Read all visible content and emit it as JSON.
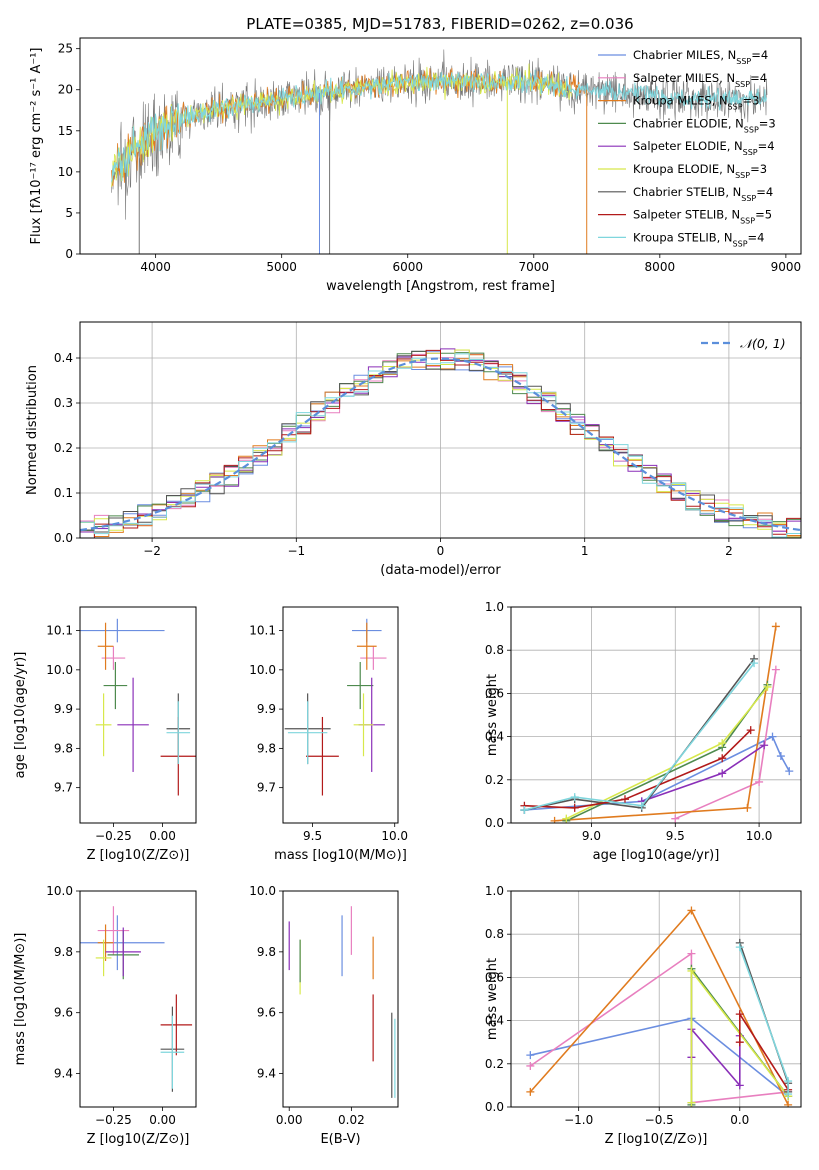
{
  "title": "PLATE=0385, MJD=51783, FIBERID=0262, z=0.036",
  "colors": {
    "Chabrier MILES": "#6b8ee0",
    "Salpeter MILES": "#e87fbf",
    "Kroupa MILES": "#e07b1f",
    "Chabrier ELODIE": "#4e8a4e",
    "Salpeter ELODIE": "#8a2fb8",
    "Kroupa ELODIE": "#d7e84b",
    "Chabrier STELIB": "#555555",
    "Salpeter STELIB": "#b21a1a",
    "Kroupa STELIB": "#7fd6dd"
  },
  "chart_data": [
    {
      "id": "spectrum",
      "type": "line",
      "title": "PLATE=0385, MJD=51783, FIBERID=0262, z=0.036",
      "xlabel": "wavelength [Angstrom, rest frame]",
      "ylabel": "Flux [fλ10⁻¹⁷ erg cm⁻² s⁻¹ A⁻¹]",
      "xlim": [
        3400,
        9120
      ],
      "ylim": [
        0,
        26.3
      ],
      "xticks": [
        4000,
        5000,
        6000,
        7000,
        8000,
        9000
      ],
      "yticks": [
        0,
        5,
        10,
        15,
        20,
        25
      ],
      "grid": false,
      "legend": "top-right",
      "legend_entries": [
        "Chabrier MILES, N_SSP=4",
        "Salpeter MILES, N_SSP=4",
        "Kroupa MILES, N_SSP=3",
        "Chabrier ELODIE, N_SSP=3",
        "Salpeter ELODIE, N_SSP=4",
        "Kroupa ELODIE, N_SSP=3",
        "Chabrier STELIB, N_SSP=4",
        "Salpeter STELIB, N_SSP=5",
        "Kroupa STELIB, N_SSP=4"
      ],
      "continuum": {
        "x": [
          3650,
          3800,
          4000,
          4300,
          4600,
          5000,
          5500,
          6000,
          6500,
          7000,
          7400,
          7600,
          8000,
          8500,
          8850
        ],
        "y": [
          10,
          12,
          15,
          17,
          18,
          19,
          20,
          21,
          21,
          21,
          20,
          20,
          19,
          19,
          19
        ]
      },
      "series_ranges": [
        {
          "name": "data",
          "x": [
            3650,
            8850
          ]
        },
        {
          "name": "Chabrier STELIB",
          "x": [
            3650,
            7400
          ]
        },
        {
          "name": "Kroupa STELIB",
          "x": [
            3650,
            8850
          ]
        }
      ]
    },
    {
      "id": "residuals",
      "type": "line",
      "xlabel": "(data-model)/error",
      "ylabel": "Normed distribution",
      "xlim": [
        -2.5,
        2.5
      ],
      "ylim": [
        0,
        0.48
      ],
      "xticks": [
        -2,
        -1,
        0,
        1,
        2
      ],
      "yticks": [
        0.0,
        0.1,
        0.2,
        0.3,
        0.4
      ],
      "grid": true,
      "legend": "top-right",
      "legend_entries": [
        "N(0,1)"
      ],
      "gaussian": {
        "mean": 0,
        "sigma": 1
      }
    },
    {
      "id": "age-vs-Z",
      "type": "scatter",
      "xlabel": "Z [log10(Z/Z⊙)]",
      "ylabel": "age  [log10(age/yr)]",
      "xlim": [
        -0.42,
        0.17
      ],
      "ylim": [
        9.61,
        10.16
      ],
      "xticks": [
        -0.25,
        0.0
      ],
      "yticks": [
        9.7,
        9.8,
        9.9,
        10.0,
        10.1
      ],
      "points": [
        {
          "name": "Chabrier MILES",
          "x": -0.23,
          "y": 10.1,
          "xerr": 0.24,
          "yerr": 0.03
        },
        {
          "name": "Salpeter MILES",
          "x": -0.25,
          "y": 10.03,
          "xerr": 0.06,
          "yerr": 0.03
        },
        {
          "name": "Kroupa MILES",
          "x": -0.29,
          "y": 10.06,
          "xerr": 0.04,
          "yerr": 0.06
        },
        {
          "name": "Chabrier ELODIE",
          "x": -0.24,
          "y": 9.96,
          "xerr": 0.06,
          "yerr": 0.06
        },
        {
          "name": "Salpeter ELODIE",
          "x": -0.15,
          "y": 9.86,
          "xerr": 0.08,
          "yerr": 0.12
        },
        {
          "name": "Kroupa ELODIE",
          "x": -0.3,
          "y": 9.86,
          "xerr": 0.04,
          "yerr": 0.08
        },
        {
          "name": "Chabrier STELIB",
          "x": 0.08,
          "y": 9.85,
          "xerr": 0.06,
          "yerr": 0.09
        },
        {
          "name": "Salpeter STELIB",
          "x": 0.08,
          "y": 9.78,
          "xerr": 0.09,
          "yerr": 0.1
        },
        {
          "name": "Kroupa STELIB",
          "x": 0.08,
          "y": 9.84,
          "xerr": 0.06,
          "yerr": 0.08
        }
      ]
    },
    {
      "id": "age-vs-mass",
      "type": "scatter",
      "xlabel": "mass [log10(M/M⊙)]",
      "ylabel": "",
      "xlim": [
        9.32,
        10.02
      ],
      "ylim": [
        9.61,
        10.16
      ],
      "xticks": [
        9.5,
        10.0
      ],
      "yticks": [
        9.7,
        9.8,
        9.9,
        10.0,
        10.1
      ],
      "points": [
        {
          "name": "Chabrier MILES",
          "x": 9.83,
          "y": 10.1,
          "xerr": 0.09,
          "yerr": 0.03
        },
        {
          "name": "Salpeter MILES",
          "x": 9.87,
          "y": 10.03,
          "xerr": 0.08,
          "yerr": 0.03
        },
        {
          "name": "Kroupa MILES",
          "x": 9.83,
          "y": 10.06,
          "xerr": 0.06,
          "yerr": 0.06
        },
        {
          "name": "Chabrier ELODIE",
          "x": 9.79,
          "y": 9.96,
          "xerr": 0.08,
          "yerr": 0.06
        },
        {
          "name": "Salpeter ELODIE",
          "x": 9.86,
          "y": 9.86,
          "xerr": 0.08,
          "yerr": 0.12
        },
        {
          "name": "Kroupa ELODIE",
          "x": 9.81,
          "y": 9.86,
          "xerr": 0.06,
          "yerr": 0.08
        },
        {
          "name": "Chabrier STELIB",
          "x": 9.47,
          "y": 9.85,
          "xerr": 0.14,
          "yerr": 0.09
        },
        {
          "name": "Salpeter STELIB",
          "x": 9.56,
          "y": 9.78,
          "xerr": 0.1,
          "yerr": 0.1
        },
        {
          "name": "Kroupa STELIB",
          "x": 9.47,
          "y": 9.84,
          "xerr": 0.12,
          "yerr": 0.08
        }
      ]
    },
    {
      "id": "weight-vs-age",
      "type": "line",
      "xlabel": "age  [log10(age/yr)]",
      "ylabel": "mass weight",
      "xlim": [
        8.52,
        10.25
      ],
      "ylim": [
        0,
        1.0
      ],
      "xticks": [
        9.0,
        9.5,
        10.0
      ],
      "yticks": [
        0.0,
        0.2,
        0.4,
        0.6,
        0.8,
        1.0
      ],
      "grid": true,
      "series": [
        {
          "name": "Chabrier MILES",
          "x": [
            8.6,
            9.3,
            10.08,
            10.13,
            10.18
          ],
          "y": [
            0.06,
            0.1,
            0.4,
            0.31,
            0.24
          ]
        },
        {
          "name": "Salpeter MILES",
          "x": [
            9.5,
            10.0,
            10.1
          ],
          "y": [
            0.02,
            0.19,
            0.71
          ]
        },
        {
          "name": "Kroupa MILES",
          "x": [
            8.78,
            9.93,
            10.1
          ],
          "y": [
            0.01,
            0.07,
            0.91
          ]
        },
        {
          "name": "Chabrier ELODIE",
          "x": [
            8.85,
            9.78,
            10.05
          ],
          "y": [
            0.01,
            0.35,
            0.64
          ]
        },
        {
          "name": "Salpeter ELODIE",
          "x": [
            9.3,
            9.78,
            10.03
          ],
          "y": [
            0.1,
            0.23,
            0.36
          ]
        },
        {
          "name": "Kroupa ELODIE",
          "x": [
            8.85,
            9.78,
            10.05
          ],
          "y": [
            0.02,
            0.37,
            0.63
          ]
        },
        {
          "name": "Chabrier STELIB",
          "x": [
            8.6,
            8.9,
            9.3,
            9.97
          ],
          "y": [
            0.06,
            0.11,
            0.07,
            0.76
          ]
        },
        {
          "name": "Salpeter STELIB",
          "x": [
            8.6,
            8.9,
            9.2,
            9.78,
            9.95
          ],
          "y": [
            0.08,
            0.07,
            0.11,
            0.3,
            0.43
          ]
        },
        {
          "name": "Kroupa STELIB",
          "x": [
            8.6,
            8.9,
            9.3,
            9.97
          ],
          "y": [
            0.06,
            0.12,
            0.08,
            0.74
          ]
        }
      ]
    },
    {
      "id": "mass-vs-Z",
      "type": "scatter",
      "xlabel": "Z [log10(Z/Z⊙)]",
      "ylabel": "mass [log10(M/M⊙)]",
      "xlim": [
        -0.42,
        0.17
      ],
      "ylim": [
        9.29,
        10.0
      ],
      "xticks": [
        -0.25,
        0.0
      ],
      "yticks": [
        9.4,
        9.6,
        9.8,
        10.0
      ],
      "points": [
        {
          "name": "Chabrier MILES",
          "x": -0.23,
          "y": 9.83,
          "xerr": 0.24,
          "yerr": 0.09
        },
        {
          "name": "Salpeter MILES",
          "x": -0.25,
          "y": 9.87,
          "xerr": 0.08,
          "yerr": 0.08
        },
        {
          "name": "Kroupa MILES",
          "x": -0.29,
          "y": 9.83,
          "xerr": 0.04,
          "yerr": 0.06
        },
        {
          "name": "Chabrier ELODIE",
          "x": -0.2,
          "y": 9.79,
          "xerr": 0.08,
          "yerr": 0.08
        },
        {
          "name": "Salpeter ELODIE",
          "x": -0.2,
          "y": 9.8,
          "xerr": 0.09,
          "yerr": 0.08
        },
        {
          "name": "Kroupa ELODIE",
          "x": -0.3,
          "y": 9.78,
          "xerr": 0.04,
          "yerr": 0.06
        },
        {
          "name": "Chabrier STELIB",
          "x": 0.05,
          "y": 9.48,
          "xerr": 0.06,
          "yerr": 0.14
        },
        {
          "name": "Salpeter STELIB",
          "x": 0.07,
          "y": 9.56,
          "xerr": 0.08,
          "yerr": 0.1
        },
        {
          "name": "Kroupa STELIB",
          "x": 0.05,
          "y": 9.47,
          "xerr": 0.06,
          "yerr": 0.12
        }
      ]
    },
    {
      "id": "mass-vs-EBV",
      "type": "scatter",
      "xlabel": "E(B-V)",
      "ylabel": "",
      "xlim": [
        -0.002,
        0.035
      ],
      "ylim": [
        9.29,
        10.0
      ],
      "xticks": [
        0.0,
        0.02
      ],
      "xticklabels": [
        "0.00",
        "0.02"
      ],
      "yticks": [
        9.4,
        9.6,
        9.8,
        10.0
      ],
      "points": [
        {
          "name": "Chabrier MILES",
          "x": 0.017,
          "y": 9.82,
          "yerr": 0.1
        },
        {
          "name": "Salpeter MILES",
          "x": 0.02,
          "y": 9.87,
          "yerr": 0.08
        },
        {
          "name": "Kroupa MILES",
          "x": 0.027,
          "y": 9.78,
          "yerr": 0.07
        },
        {
          "name": "Salpeter ELODIE",
          "x": 0.0,
          "y": 9.82,
          "yerr": 0.08
        },
        {
          "name": "Kroupa ELODIE",
          "x": 0.0035,
          "y": 9.75,
          "yerr": 0.09
        },
        {
          "name": "Chabrier ELODIE",
          "x": 0.0035,
          "y": 9.77,
          "yerr": 0.07
        },
        {
          "name": "Salpeter STELIB",
          "x": 0.027,
          "y": 9.55,
          "yerr": 0.11
        },
        {
          "name": "Chabrier STELIB",
          "x": 0.033,
          "y": 9.46,
          "yerr": 0.14
        },
        {
          "name": "Kroupa STELIB",
          "x": 0.034,
          "y": 9.45,
          "yerr": 0.13
        }
      ]
    },
    {
      "id": "weight-vs-Z",
      "type": "line",
      "xlabel": "Z [log10(Z/Z⊙)]",
      "ylabel": "mass weight",
      "xlim": [
        -1.42,
        0.38
      ],
      "ylim": [
        0,
        1.0
      ],
      "xticks": [
        -1.0,
        -0.5,
        0.0
      ],
      "yticks": [
        0.0,
        0.2,
        0.4,
        0.6,
        0.8,
        1.0
      ],
      "grid": true,
      "series": [
        {
          "name": "Chabrier MILES",
          "x": [
            -1.3,
            -0.3,
            0.3
          ],
          "y": [
            0.24,
            0.41,
            0.05
          ]
        },
        {
          "name": "Salpeter MILES",
          "x": [
            -1.3,
            -0.3,
            -0.3,
            0.3
          ],
          "y": [
            0.19,
            0.71,
            0.02,
            0.07
          ]
        },
        {
          "name": "Kroupa MILES",
          "x": [
            -1.3,
            -0.3,
            0.3
          ],
          "y": [
            0.07,
            0.91,
            0.01
          ]
        },
        {
          "name": "Chabrier ELODIE",
          "x": [
            -0.3,
            -0.3,
            0.3
          ],
          "y": [
            0.01,
            0.64,
            0.05
          ]
        },
        {
          "name": "Salpeter ELODIE",
          "x": [
            -0.3,
            -0.3,
            0.0,
            0.0
          ],
          "y": [
            0.23,
            0.36,
            0.1,
            0.33
          ]
        },
        {
          "name": "Kroupa ELODIE",
          "x": [
            -0.3,
            -0.3,
            0.3
          ],
          "y": [
            0.02,
            0.63,
            0.05
          ]
        },
        {
          "name": "Chabrier STELIB",
          "x": [
            0.0,
            0.3,
            0.3
          ],
          "y": [
            0.76,
            0.11,
            0.07
          ]
        },
        {
          "name": "Salpeter STELIB",
          "x": [
            0.0,
            0.0,
            0.3
          ],
          "y": [
            0.3,
            0.43,
            0.08
          ]
        },
        {
          "name": "Kroupa STELIB",
          "x": [
            0.0,
            0.3,
            0.3
          ],
          "y": [
            0.74,
            0.12,
            0.06
          ]
        }
      ]
    }
  ]
}
